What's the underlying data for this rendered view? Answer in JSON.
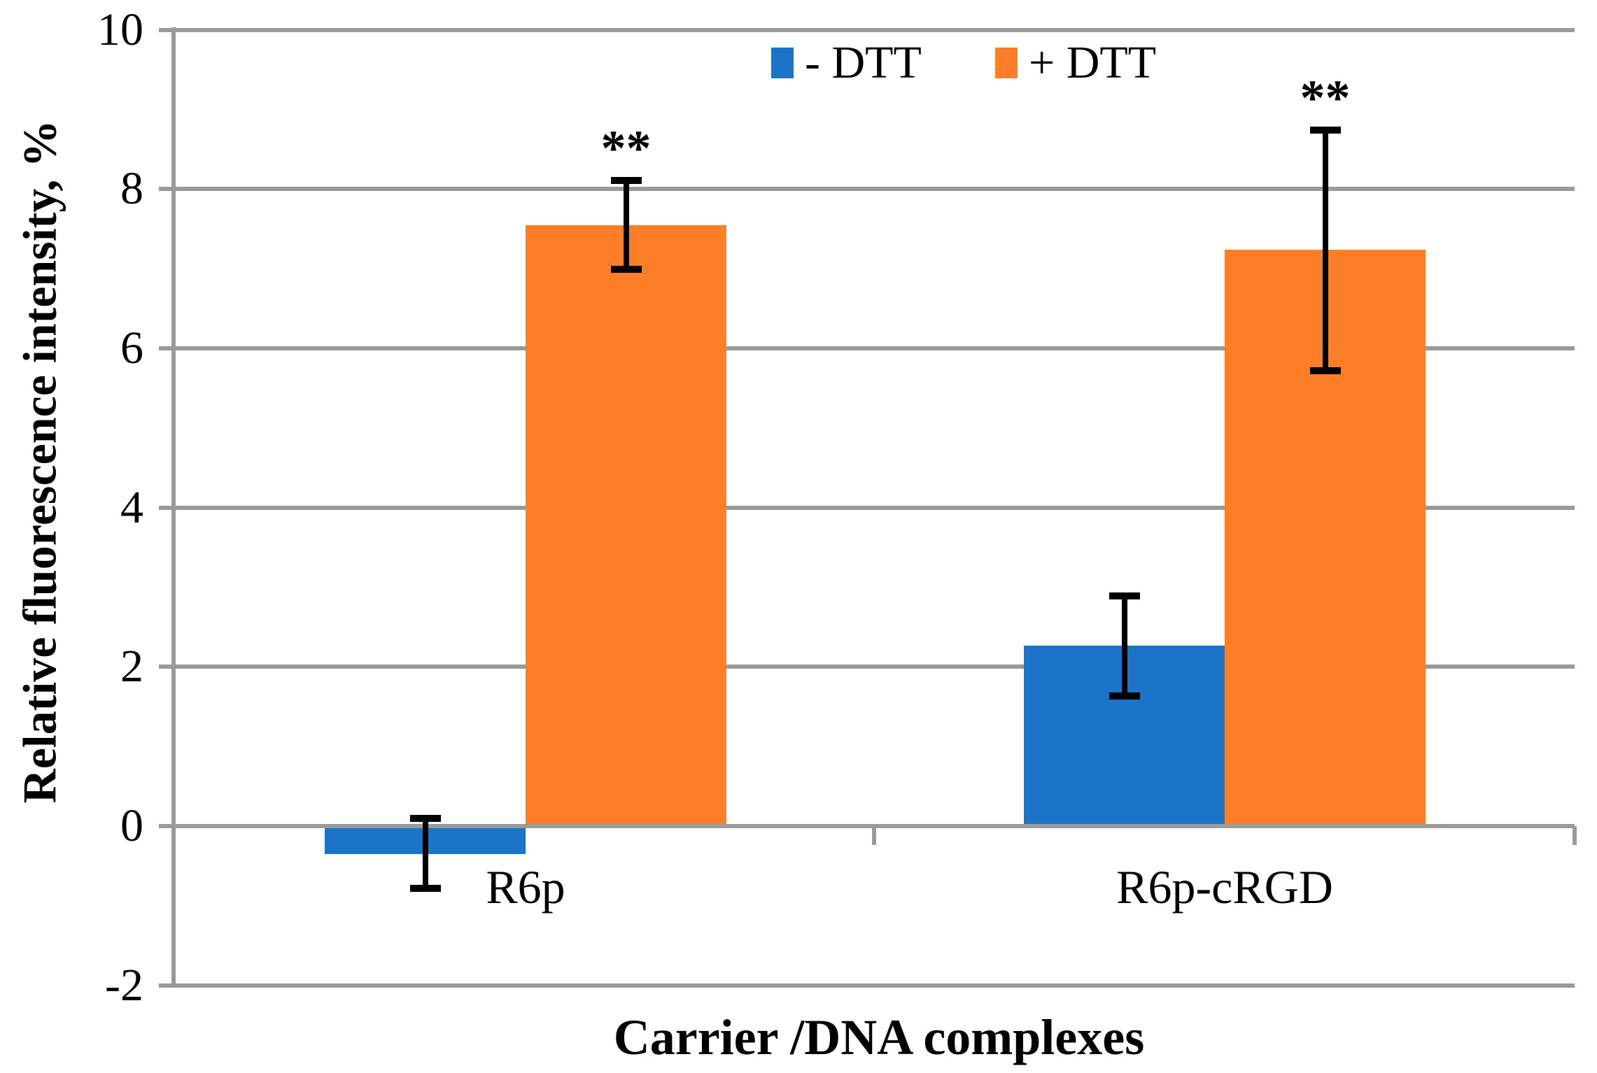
{
  "colors": {
    "grid": "#9A9A9A",
    "axis_text": "#000000",
    "blue_series": "#1B74C8",
    "orange_series": "#FE7D27"
  },
  "chart_data": {
    "type": "bar",
    "title": "",
    "xlabel": "Carrier /DNA complexes",
    "ylabel": "Relative fluorescence intensity, %",
    "categories": [
      "R6p",
      "R6p-cRGD"
    ],
    "series": [
      {
        "name": "- DTT",
        "color": "#1B74C8",
        "values": [
          -0.35,
          2.27
        ],
        "error_bars": [
          {
            "low": -0.78,
            "high": 0.1
          },
          {
            "low": 1.63,
            "high": 2.89
          }
        ],
        "significance": [
          "",
          ""
        ]
      },
      {
        "name": "+ DTT",
        "color": "#FE7D27",
        "values": [
          7.55,
          7.24
        ],
        "error_bars": [
          {
            "low": 6.99,
            "high": 8.11
          },
          {
            "low": 5.72,
            "high": 8.74
          }
        ],
        "significance": [
          "**",
          "**"
        ]
      }
    ],
    "yticks": [
      -2,
      0,
      2,
      4,
      6,
      8,
      10
    ],
    "ylim": [
      -2,
      10
    ],
    "grid": true,
    "legend_position": "top-center-inside"
  }
}
